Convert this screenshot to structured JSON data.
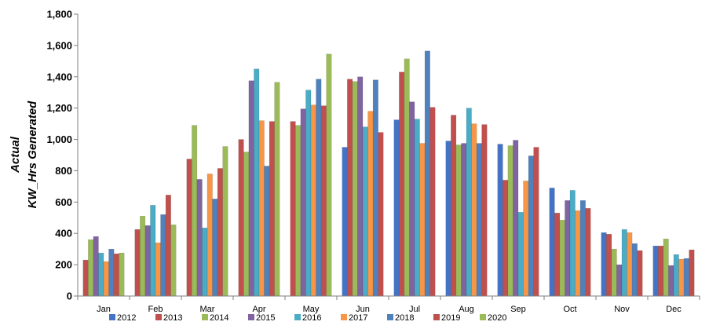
{
  "chart_data": {
    "type": "bar",
    "title": "",
    "ylabel_lines": [
      "Actual",
      "KW_Hrs Generated"
    ],
    "xlabel": "",
    "ylim": [
      0,
      1800
    ],
    "yticks": [
      0,
      200,
      400,
      600,
      800,
      1000,
      1200,
      1400,
      1600,
      1800
    ],
    "ytick_labels": [
      "0",
      "200",
      "400",
      "600",
      "800",
      "1,000",
      "1,200",
      "1,400",
      "1,600",
      "1,800"
    ],
    "grid": false,
    "legend_position": "bottom",
    "categories": [
      "Jan",
      "Feb",
      "Mar",
      "Apr",
      "May",
      "Jun",
      "Jul",
      "Aug",
      "Sep",
      "Oct",
      "Nov",
      "Dec"
    ],
    "series": [
      {
        "name": "2012",
        "color": "#4472C4",
        "values": [
          null,
          null,
          null,
          null,
          null,
          950,
          1125,
          990,
          970,
          690,
          405,
          320
        ]
      },
      {
        "name": "2013",
        "color": "#C0504D",
        "values": [
          230,
          425,
          875,
          1000,
          1115,
          1385,
          1430,
          1155,
          740,
          530,
          395,
          320
        ]
      },
      {
        "name": "2014",
        "color": "#9BBB59",
        "values": [
          360,
          510,
          1090,
          920,
          1090,
          1370,
          1515,
          965,
          960,
          485,
          300,
          365
        ]
      },
      {
        "name": "2015",
        "color": "#8064A2",
        "values": [
          380,
          450,
          745,
          1375,
          1195,
          1400,
          1240,
          975,
          995,
          610,
          200,
          195
        ]
      },
      {
        "name": "2016",
        "color": "#4BACC6",
        "values": [
          275,
          580,
          435,
          1450,
          1315,
          1080,
          1130,
          1200,
          535,
          675,
          425,
          265
        ]
      },
      {
        "name": "2017",
        "color": "#F79646",
        "values": [
          220,
          340,
          780,
          1120,
          1220,
          1180,
          975,
          1100,
          735,
          545,
          405,
          235
        ]
      },
      {
        "name": "2018",
        "color": "#4F81BD",
        "values": [
          300,
          520,
          620,
          830,
          1385,
          1380,
          1565,
          975,
          895,
          610,
          335,
          240
        ]
      },
      {
        "name": "2019",
        "color": "#C0504D",
        "values": [
          270,
          645,
          815,
          1115,
          1215,
          1045,
          1205,
          1095,
          950,
          560,
          290,
          295
        ]
      },
      {
        "name": "2020",
        "color": "#9BBB59",
        "values": [
          275,
          455,
          955,
          1365,
          1545,
          null,
          null,
          null,
          null,
          null,
          null,
          null
        ]
      }
    ]
  }
}
